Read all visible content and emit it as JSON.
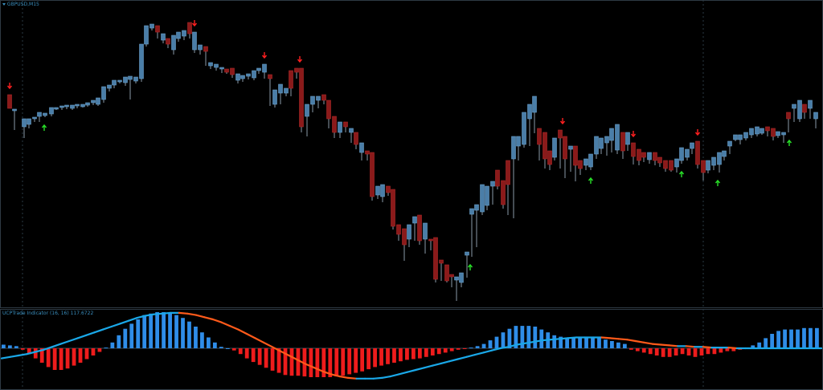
{
  "main_panel": {
    "symbol_label": "GBPUSD,M15"
  },
  "indicator_panel": {
    "label": "UCPTrade Indicator (16, 16) 117.6722"
  },
  "colors": {
    "background": "#000000",
    "bull_candle": "#4a7ea8",
    "bear_candle": "#8b1a1a",
    "wick": "#8a9aa8",
    "sell_arrow": "#ff2020",
    "buy_arrow": "#28e028",
    "hist_positive": "#2f8de8",
    "hist_negative": "#ee1c1c",
    "line_rising": "#1aa8e8",
    "line_falling": "#ff5a1a",
    "grid": "#2a3a44"
  },
  "icons": {
    "symbol_marker": "triangle-down-icon",
    "sell": "down-arrow-icon",
    "buy": "up-arrow-icon"
  },
  "chart_data": [
    {
      "type": "candlestick",
      "title": "GBPUSD,M15",
      "candles": [
        [
          12,
          135,
          118,
          135,
          8
        ],
        [
          18,
          136,
          136,
          162,
          8
        ],
        [
          30,
          158,
          148,
          172,
          8
        ],
        [
          36,
          155,
          148,
          160,
          8
        ],
        [
          43,
          147,
          146,
          152,
          8
        ],
        [
          49,
          145,
          140,
          152,
          8
        ],
        [
          56,
          144,
          141,
          146,
          8
        ],
        [
          64,
          142,
          134,
          145,
          8
        ],
        [
          70,
          135,
          134,
          137,
          8
        ],
        [
          77,
          134,
          132,
          137,
          8
        ],
        [
          83,
          133,
          131,
          136,
          8
        ],
        [
          90,
          135,
          131,
          137,
          8
        ],
        [
          96,
          132,
          130,
          135,
          8
        ],
        [
          103,
          133,
          130,
          134,
          8
        ],
        [
          109,
          131,
          128,
          133,
          8
        ],
        [
          116,
          128,
          125,
          131,
          8
        ],
        [
          122,
          130,
          122,
          132,
          8
        ],
        [
          129,
          124,
          108,
          128,
          8
        ],
        [
          136,
          110,
          106,
          114,
          8
        ],
        [
          142,
          106,
          100,
          110,
          8
        ],
        [
          149,
          102,
          100,
          104,
          8
        ],
        [
          156,
          103,
          96,
          107,
          8
        ],
        [
          162,
          99,
          95,
          124,
          8
        ],
        [
          169,
          101,
          96,
          104,
          8
        ],
        [
          176,
          98,
          55,
          102,
          8
        ],
        [
          182,
          55,
          32,
          58,
          8
        ],
        [
          189,
          35,
          30,
          38,
          8
        ],
        [
          196,
          40,
          32,
          48,
          8
        ],
        [
          203,
          50,
          42,
          54,
          8
        ],
        [
          209,
          55,
          48,
          60,
          8
        ],
        [
          216,
          62,
          44,
          68,
          8
        ],
        [
          222,
          48,
          40,
          52,
          8
        ],
        [
          229,
          45,
          38,
          50,
          8
        ],
        [
          236,
          42,
          28,
          48,
          8
        ],
        [
          242,
          62,
          40,
          66,
          8
        ],
        [
          249,
          62,
          56,
          68,
          8
        ],
        [
          256,
          64,
          58,
          82,
          8
        ],
        [
          262,
          82,
          78,
          86,
          8
        ],
        [
          269,
          84,
          80,
          88,
          8
        ],
        [
          276,
          86,
          84,
          91,
          8
        ],
        [
          282,
          90,
          86,
          92,
          8
        ],
        [
          289,
          93,
          85,
          97,
          8
        ],
        [
          296,
          100,
          92,
          104,
          8
        ],
        [
          302,
          98,
          94,
          102,
          8
        ],
        [
          309,
          95,
          92,
          99,
          8
        ],
        [
          316,
          97,
          88,
          100,
          8
        ],
        [
          322,
          88,
          85,
          92,
          8
        ],
        [
          329,
          90,
          80,
          98,
          8
        ],
        [
          336,
          98,
          93,
          132,
          8
        ],
        [
          342,
          130,
          112,
          134,
          8
        ],
        [
          349,
          116,
          105,
          130,
          8
        ],
        [
          356,
          116,
          110,
          120,
          8
        ],
        [
          362,
          110,
          88,
          120,
          8
        ],
        [
          369,
          90,
          85,
          98,
          8
        ],
        [
          375,
          158,
          85,
          165,
          8
        ],
        [
          382,
          145,
          130,
          170,
          8
        ],
        [
          389,
          130,
          120,
          140,
          8
        ],
        [
          396,
          125,
          120,
          135,
          8
        ],
        [
          403,
          125,
          118,
          130,
          8
        ],
        [
          409,
          148,
          125,
          160,
          8
        ],
        [
          416,
          165,
          145,
          172,
          8
        ],
        [
          423,
          165,
          152,
          172,
          8
        ],
        [
          430,
          158,
          152,
          165,
          8
        ],
        [
          437,
          165,
          160,
          178,
          8
        ],
        [
          443,
          180,
          165,
          186,
          8
        ],
        [
          450,
          190,
          178,
          200,
          8
        ],
        [
          457,
          192,
          188,
          200,
          8
        ],
        [
          463,
          245,
          190,
          250,
          8
        ],
        [
          470,
          243,
          232,
          248,
          8
        ],
        [
          476,
          245,
          230,
          252,
          8
        ],
        [
          483,
          240,
          232,
          244,
          8
        ],
        [
          489,
          282,
          236,
          286,
          8
        ],
        [
          496,
          292,
          280,
          300,
          8
        ],
        [
          503,
          305,
          285,
          325,
          8
        ],
        [
          509,
          298,
          280,
          308,
          8
        ],
        [
          516,
          278,
          270,
          300,
          8
        ],
        [
          522,
          300,
          268,
          305,
          8
        ],
        [
          529,
          298,
          278,
          316,
          8
        ],
        [
          536,
          300,
          298,
          312,
          8
        ],
        [
          542,
          348,
          296,
          352,
          8
        ],
        [
          549,
          328,
          324,
          350,
          8
        ],
        [
          556,
          350,
          330,
          352,
          8
        ],
        [
          562,
          345,
          342,
          358,
          8
        ],
        [
          568,
          349,
          345,
          375,
          8
        ],
        [
          574,
          352,
          340,
          358,
          8
        ],
        [
          581,
          318,
          314,
          346,
          8
        ],
        [
          587,
          267,
          260,
          320,
          8
        ],
        [
          593,
          262,
          255,
          308,
          8
        ],
        [
          600,
          264,
          230,
          268,
          8
        ],
        [
          606,
          256,
          232,
          262,
          8
        ],
        [
          613,
          232,
          226,
          255,
          8
        ],
        [
          619,
          232,
          212,
          236,
          8
        ],
        [
          626,
          255,
          225,
          260,
          8
        ],
        [
          632,
          230,
          200,
          268,
          8
        ],
        [
          639,
          198,
          170,
          272,
          8
        ],
        [
          645,
          182,
          170,
          200,
          8
        ],
        [
          652,
          180,
          140,
          184,
          8
        ],
        [
          659,
          148,
          130,
          182,
          8
        ],
        [
          665,
          140,
          120,
          166,
          8
        ],
        [
          671,
          180,
          160,
          200,
          8
        ],
        [
          678,
          198,
          165,
          210,
          8
        ],
        [
          684,
          205,
          188,
          212,
          8
        ],
        [
          690,
          196,
          172,
          200,
          8
        ],
        [
          697,
          172,
          162,
          210,
          8
        ],
        [
          703,
          198,
          170,
          222,
          8
        ],
        [
          710,
          186,
          182,
          214,
          8
        ],
        [
          716,
          206,
          182,
          226,
          8
        ],
        [
          722,
          210,
          200,
          218,
          8
        ],
        [
          729,
          206,
          198,
          212,
          8
        ],
        [
          735,
          208,
          192,
          212,
          8
        ],
        [
          742,
          192,
          170,
          198,
          8
        ],
        [
          748,
          185,
          172,
          192,
          8
        ],
        [
          755,
          178,
          170,
          194,
          8
        ],
        [
          761,
          175,
          160,
          190,
          8
        ],
        [
          768,
          187,
          155,
          192,
          8
        ],
        [
          775,
          188,
          165,
          198,
          8
        ],
        [
          781,
          180,
          165,
          188,
          8
        ],
        [
          788,
          195,
          178,
          205,
          8
        ],
        [
          795,
          200,
          186,
          206,
          8
        ],
        [
          801,
          196,
          190,
          202,
          8
        ],
        [
          808,
          199,
          190,
          204,
          8
        ],
        [
          815,
          200,
          190,
          206,
          8
        ],
        [
          821,
          203,
          196,
          208,
          8
        ],
        [
          828,
          210,
          200,
          214,
          8
        ],
        [
          835,
          212,
          200,
          214,
          8
        ],
        [
          842,
          208,
          198,
          215,
          8
        ],
        [
          848,
          200,
          184,
          204,
          8
        ],
        [
          855,
          196,
          186,
          200,
          8
        ],
        [
          861,
          185,
          178,
          192,
          8
        ],
        [
          868,
          205,
          176,
          210,
          8
        ],
        [
          875,
          215,
          200,
          225,
          8
        ],
        [
          881,
          212,
          200,
          216,
          8
        ],
        [
          888,
          206,
          196,
          212,
          8
        ],
        [
          895,
          205,
          190,
          215,
          8
        ],
        [
          901,
          195,
          188,
          200,
          8
        ],
        [
          908,
          182,
          176,
          192,
          8
        ],
        [
          915,
          174,
          168,
          176,
          8
        ],
        [
          921,
          174,
          168,
          180,
          8
        ],
        [
          928,
          172,
          165,
          175,
          8
        ],
        [
          935,
          168,
          160,
          172,
          8
        ],
        [
          942,
          167,
          158,
          170,
          8
        ],
        [
          948,
          166,
          160,
          168,
          8
        ],
        [
          955,
          163,
          158,
          170,
          8
        ],
        [
          962,
          170,
          160,
          175,
          8
        ],
        [
          968,
          169,
          164,
          172,
          8
        ],
        [
          975,
          168,
          165,
          178,
          8
        ],
        [
          981,
          148,
          140,
          165,
          8
        ],
        [
          988,
          135,
          130,
          152,
          8
        ],
        [
          995,
          148,
          125,
          152,
          8
        ],
        [
          1001,
          140,
          130,
          148,
          8
        ],
        [
          1008,
          135,
          125,
          148,
          8
        ],
        [
          1015,
          148,
          140,
          160,
          8
        ]
      ],
      "candle_bear": [
        12,
        32,
        196,
        209,
        236,
        256,
        282,
        289,
        336,
        362,
        369,
        375,
        403,
        409,
        416,
        430,
        443,
        457,
        463,
        483,
        489,
        496,
        503,
        522,
        536,
        542,
        549,
        556,
        562,
        619,
        626,
        632,
        671,
        678,
        684,
        697,
        703,
        716,
        722,
        775,
        788,
        795,
        801,
        815,
        821,
        828,
        835,
        868,
        875,
        955,
        962,
        981,
        1001
      ],
      "markers_down": [
        12,
        242,
        329,
        373,
        700,
        788,
        868
      ],
      "markers_up": [
        55,
        585,
        735,
        848,
        893,
        982
      ]
    },
    {
      "type": "bar",
      "title": "UCPTrade Indicator (16, 16) 117.6722",
      "histogram": [
        5,
        4,
        3,
        -2,
        -8,
        -14,
        -20,
        -26,
        -30,
        -30,
        -28,
        -24,
        -20,
        -15,
        -10,
        -5,
        1,
        8,
        18,
        27,
        34,
        40,
        46,
        48,
        50,
        50,
        48,
        46,
        42,
        37,
        30,
        22,
        15,
        8,
        2,
        0,
        -3,
        -8,
        -14,
        -19,
        -23,
        -27,
        -31,
        -34,
        -37,
        -38,
        -38,
        -39,
        -40,
        -40,
        -40,
        -40,
        -39,
        -38,
        -36,
        -34,
        -32,
        -29,
        -26,
        -24,
        -22,
        -20,
        -18,
        -16,
        -15,
        -14,
        -12,
        -10,
        -8,
        -6,
        -4,
        -2,
        -1,
        1,
        3,
        6,
        11,
        16,
        22,
        27,
        31,
        31,
        31,
        30,
        26,
        22,
        18,
        16,
        15,
        15,
        15,
        15,
        14,
        14,
        12,
        10,
        8,
        6,
        -2,
        -4,
        -6,
        -8,
        -10,
        -12,
        -12,
        -10,
        -8,
        -10,
        -12,
        -10,
        -8,
        -8,
        -6,
        -4,
        -4,
        -2,
        0,
        4,
        8,
        14,
        20,
        24,
        26,
        26,
        26,
        28,
        28,
        28
      ],
      "signal_line": [
        -14,
        -12,
        -10,
        -8,
        -5,
        -2,
        2,
        6,
        10,
        14,
        18,
        22,
        26,
        30,
        34,
        38,
        42,
        45,
        47,
        48,
        49,
        49,
        48,
        46,
        43,
        40,
        36,
        31,
        26,
        20,
        14,
        8,
        2,
        -4,
        -10,
        -16,
        -22,
        -27,
        -32,
        -36,
        -39,
        -41,
        -42,
        -42,
        -42,
        -41,
        -39,
        -36,
        -33,
        -30,
        -27,
        -24,
        -21,
        -18,
        -15,
        -12,
        -9,
        -6,
        -3,
        0,
        2,
        5,
        7,
        9,
        11,
        12,
        13,
        14,
        15,
        15,
        15,
        15,
        14,
        13,
        12,
        10,
        8,
        6,
        5,
        4,
        3,
        3,
        2,
        2,
        1,
        1,
        1,
        0,
        0,
        0,
        0,
        0,
        0,
        0,
        0,
        0,
        0,
        0
      ]
    }
  ]
}
